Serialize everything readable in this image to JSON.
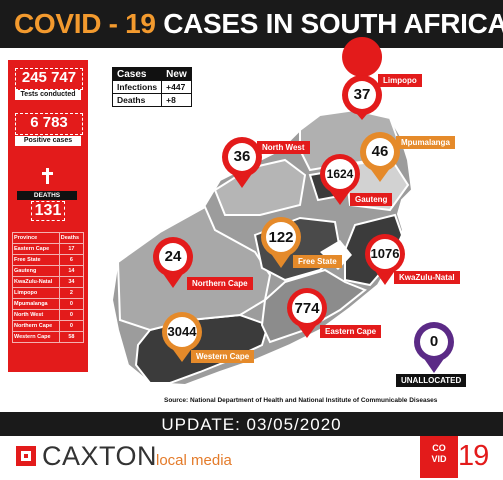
{
  "header": {
    "title_covid": "COVID - 19",
    "title_rest": "CASES IN SOUTH AFRICA"
  },
  "stats": {
    "tests_value": "245 747",
    "tests_label": "Tests conducted",
    "positive_value": "6 783",
    "positive_label": "Positive cases",
    "deaths_label": "DEATHS",
    "deaths_value": "131"
  },
  "province_table": {
    "headers": [
      "Province",
      "Deaths"
    ],
    "rows": [
      {
        "province": "Eastern Cape",
        "deaths": "17"
      },
      {
        "province": "Free State",
        "deaths": "6"
      },
      {
        "province": "Gauteng",
        "deaths": "14"
      },
      {
        "province": "KwaZulu-Natal",
        "deaths": "34"
      },
      {
        "province": "Limpopo",
        "deaths": "2"
      },
      {
        "province": "Mpumalanga",
        "deaths": "0"
      },
      {
        "province": "North West",
        "deaths": "0"
      },
      {
        "province": "Northern Cape",
        "deaths": "0"
      },
      {
        "province": "Western Cape",
        "deaths": "58"
      }
    ]
  },
  "new_table": {
    "headers": [
      "Cases",
      "New"
    ],
    "rows": [
      {
        "label": "Infections",
        "value": "+447"
      },
      {
        "label": "Deaths",
        "value": "+8"
      }
    ]
  },
  "map": {
    "limpopo": {
      "count": "37",
      "name": "Limpopo"
    },
    "north_west": {
      "count": "36",
      "name": "North West"
    },
    "mpumalanga": {
      "count": "46",
      "name": "Mpumalanga"
    },
    "gauteng": {
      "count": "1624",
      "name": "Gauteng"
    },
    "free_state": {
      "count": "122",
      "name": "Free State"
    },
    "kwazulu_natal": {
      "count": "1076",
      "name": "KwaZulu-Natal"
    },
    "northern_cape": {
      "count": "24",
      "name": "Northern Cape"
    },
    "eastern_cape": {
      "count": "774",
      "name": "Eastern Cape"
    },
    "western_cape": {
      "count": "3044",
      "name": "Western Cape"
    },
    "unallocated": {
      "count": "0",
      "name": "UNALLOCATED"
    }
  },
  "source": "Source: National Department of Health and National Institute of Communicable Diseases",
  "update": "UPDATE: 03/05/2020",
  "footer": {
    "brand": "CAXTON",
    "tagline": "local media",
    "badge_line1": "CO",
    "badge_line2": "VID",
    "badge_number": "19"
  },
  "colors": {
    "red": "#e31b1b",
    "orange": "#e58a2a",
    "purple": "#5b2a86",
    "dark": "#1a1a1a",
    "map_grey": "#9c9c9c",
    "map_dark": "#3b3b3b"
  }
}
